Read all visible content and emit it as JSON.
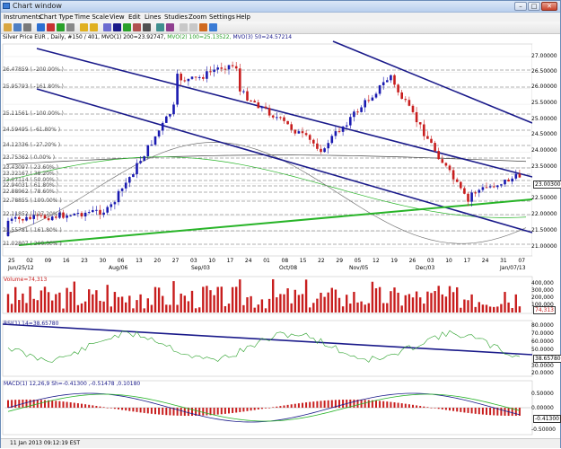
{
  "window": {
    "title": "Chart window"
  },
  "menu": [
    "Instruments",
    "Chart Type",
    "Time Scale",
    "View",
    "Edit",
    "Lines",
    "Studies",
    "Zoom",
    "Settings",
    "Help"
  ],
  "infobar": {
    "symbol": "Silver Price EUR , Daily, #",
    "values": "150 / 401, MVO(1) 200=23.92747,",
    "mvo2": "MVO(2) 100=25.13522,",
    "mvo3": "MVO(3) 50=24.57214"
  },
  "price_axis": [
    "27.00000",
    "26.50000",
    "26.00000",
    "25.50000",
    "25.00000",
    "24.50000",
    "24.00000",
    "23.50000",
    "23.00000",
    "22.50000",
    "22.00000",
    "21.50000",
    "21.00000"
  ],
  "current_price": "23.00300",
  "fib_levels": [
    "26.47859 ( -200.00% )",
    "25.95793 ( -161.80% )",
    "25.11561 ( -100.00% )",
    "24.59495 ( -61.80% )",
    "24.12336 ( -27.20% )",
    "23.75362 ( 0.00% )",
    "23.43097 ( 23.60% )",
    "23.32167 ( 38.20% )",
    "23.07114 ( 50.00% )",
    "22.94031 ( 61.80% )",
    "22.88962 ( 78.60% )",
    "22.78855 ( 100.00% )",
    "22.11852 ( 127.20% )",
    "21.55781 ( 161.80% )",
    "21.02807 ( 200.00% )"
  ],
  "x_axis": {
    "days": [
      "25",
      "02",
      "09",
      "16",
      "23",
      "30",
      "06",
      "13",
      "20",
      "27",
      "03",
      "10",
      "17",
      "24",
      "01",
      "08",
      "15",
      "22",
      "29",
      "05",
      "12",
      "19",
      "26",
      "03",
      "10",
      "17",
      "24",
      "31",
      "07"
    ],
    "months": [
      "Jun/25/12",
      "Aug/06",
      "Sep/03",
      "Oct/08",
      "Nov/05",
      "Dec/03",
      "Jan/07/13"
    ]
  },
  "volume": {
    "label": "Volume=74,313",
    "axis": [
      "400,000",
      "300,000",
      "200,000",
      "100,000"
    ],
    "current": "74,313"
  },
  "rsi": {
    "label": "RSI(1) 14=38.65780",
    "axis": [
      "80.0000",
      "70.0000",
      "60.0000",
      "50.0000",
      "40.0000",
      "30.0000",
      "20.0000"
    ],
    "current": "38.65780"
  },
  "macd": {
    "label": "MACD(1) 12,26,9 Sh=-0.41300 ,-0.51478 ,0.10180",
    "axis": [
      "0.50000",
      "0.00000",
      "-0.50000"
    ],
    "current": "-0.41300"
  },
  "status": {
    "timestamp": "11 Jan 2013 09:12:19 EST"
  },
  "colors": {
    "candle_up": "#1a1ab0",
    "candle_down": "#c81e1e",
    "channel": "#1a1a8a",
    "green": "#28b428",
    "ma_dark": "#555555"
  }
}
